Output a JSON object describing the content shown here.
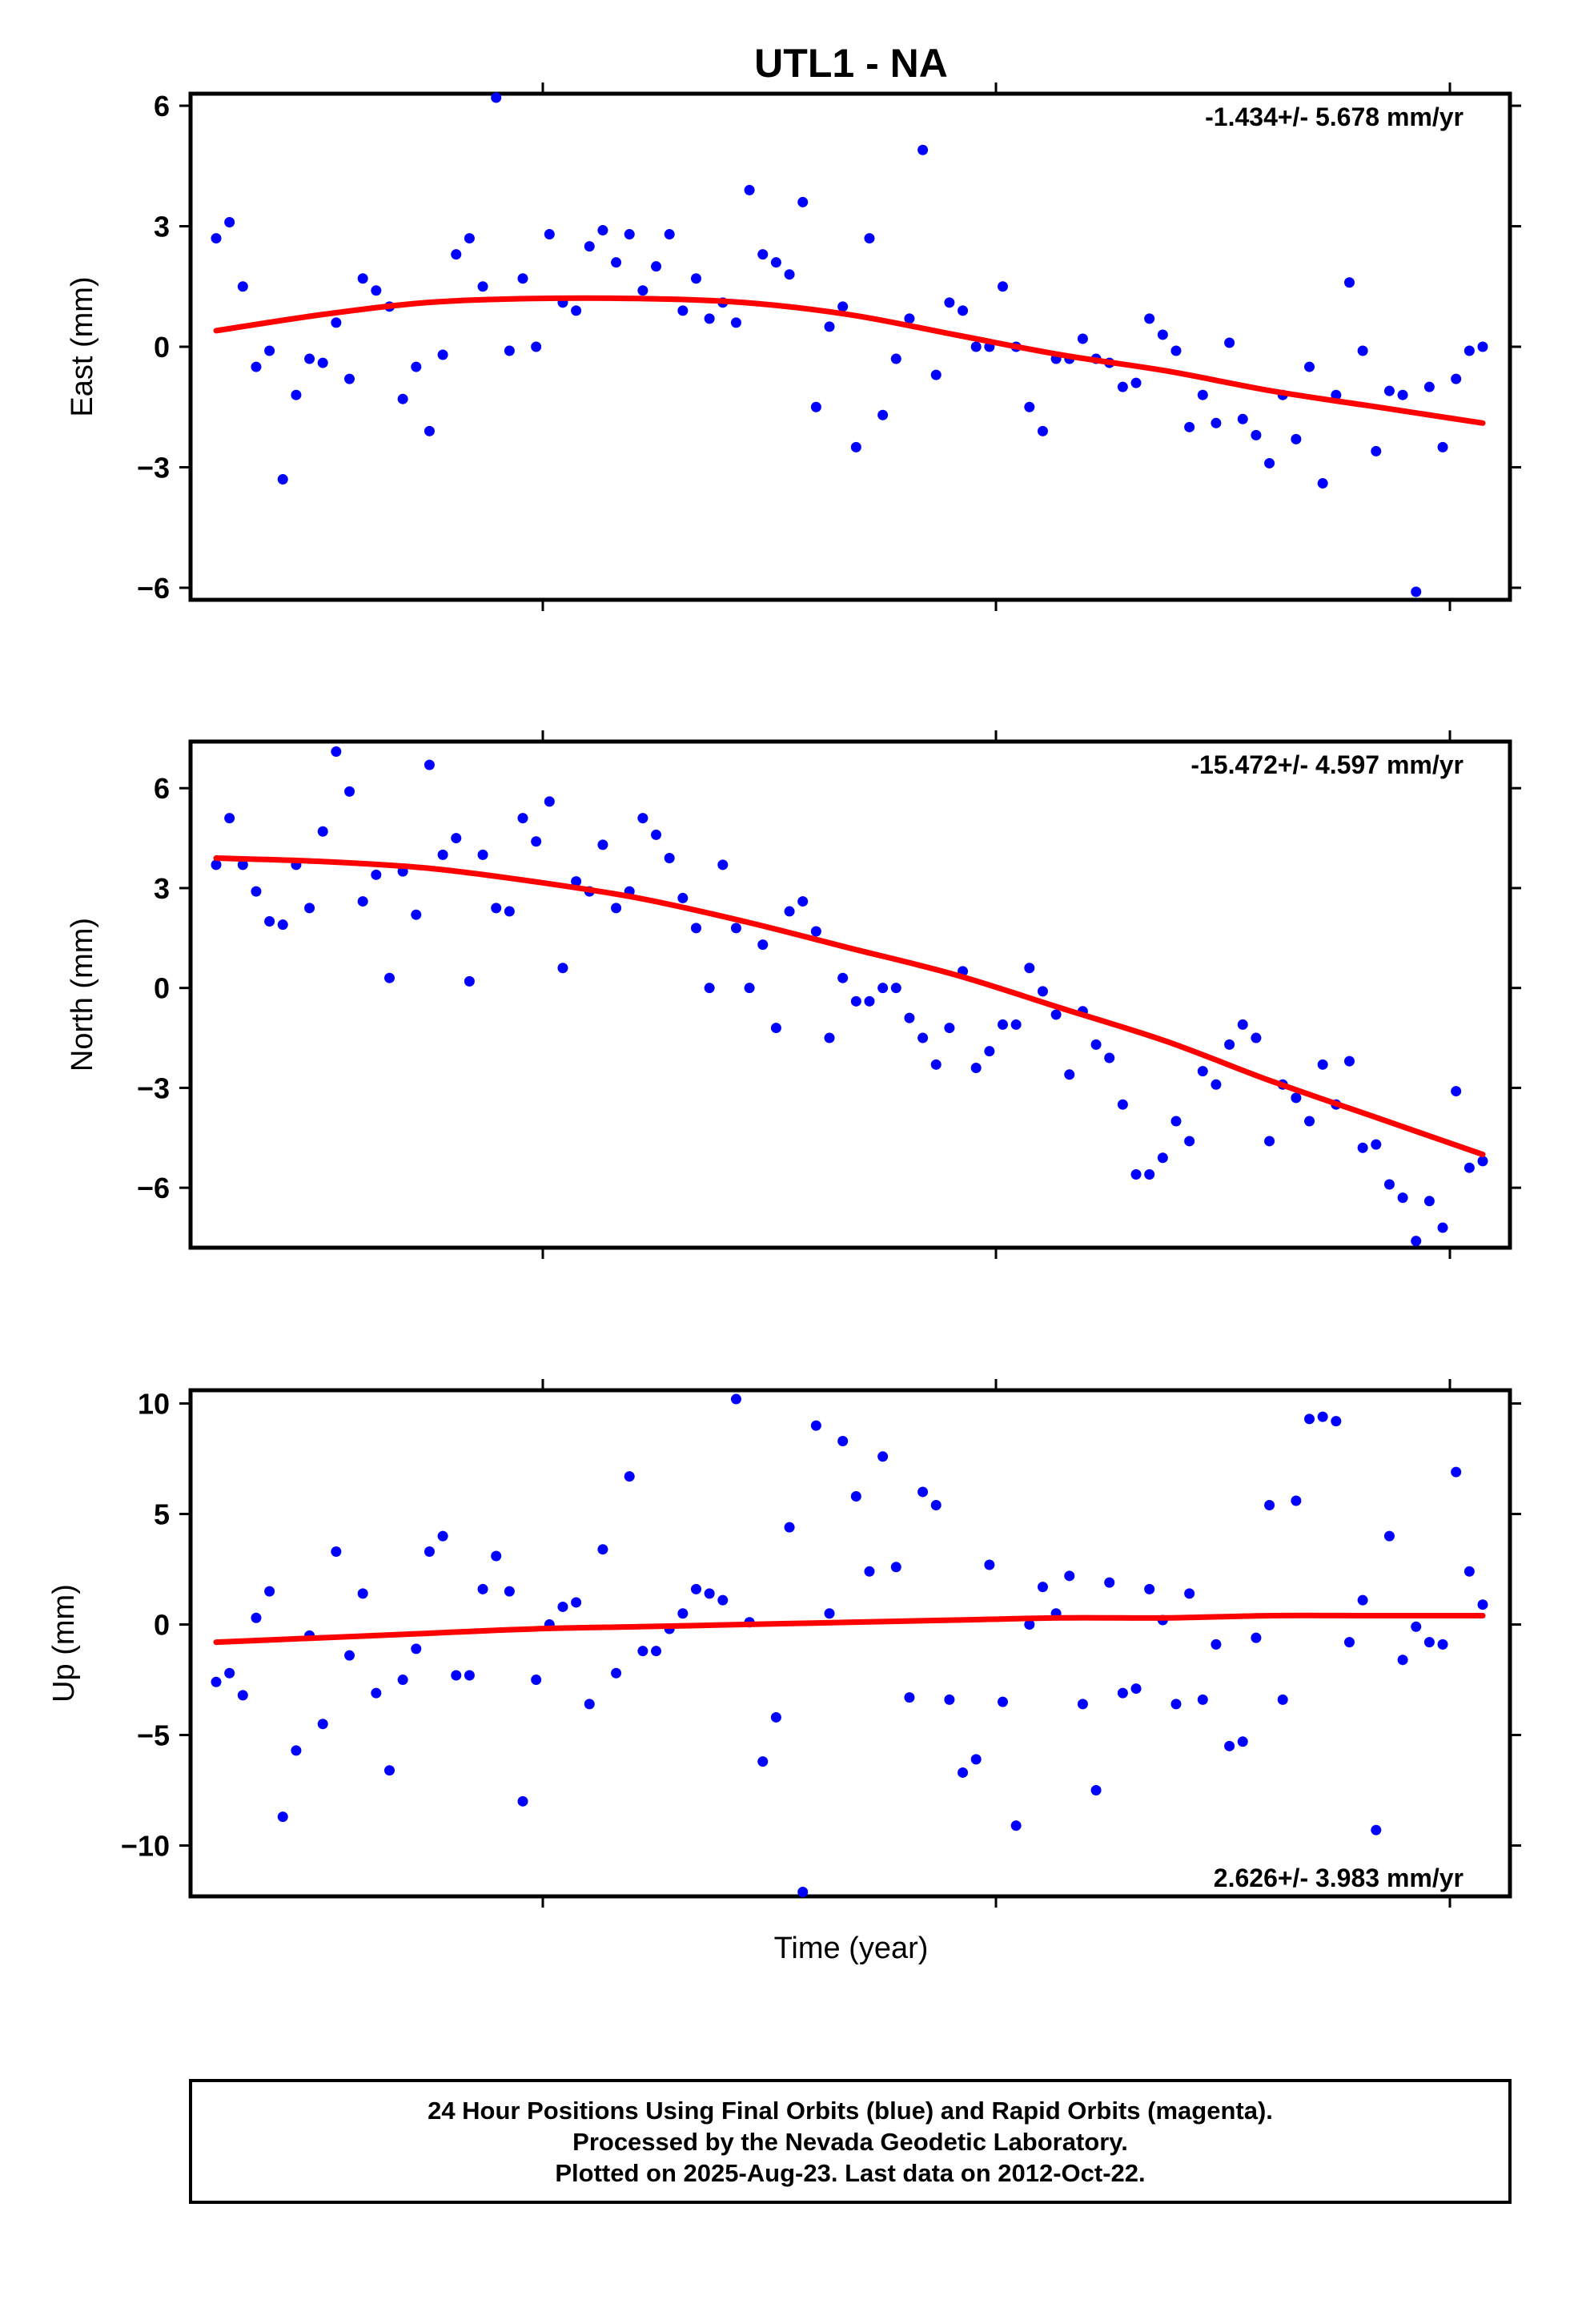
{
  "title": "UTL1 - NA",
  "x_axis_label": "Time (year)",
  "footer": {
    "line1": "24 Hour Positions Using Final Orbits (blue) and Rapid Orbits (magenta).",
    "line2": "Processed by the Nevada Geodetic Laboratory.",
    "line3": "Plotted on 2025-Aug-23. Last data on 2012-Oct-22."
  },
  "colors": {
    "points": "#0000ff",
    "fit": "#ff0000",
    "frame": "#000000"
  },
  "chart_data": [
    {
      "type": "scatter",
      "id": "east",
      "ylabel": "East (mm)",
      "rate_label": "-1.434+/- 5.678 mm/yr",
      "rate_position": "top-right",
      "ylim": [
        -6.3,
        6.3
      ],
      "yticks": [
        6,
        3,
        0,
        -3,
        -6
      ],
      "ytick_labels": [
        "6",
        "3",
        "0",
        "−3",
        "−6"
      ],
      "xlim": [
        0,
        1
      ],
      "grid": false,
      "series": [
        {
          "values": [
            2.7,
            3.1,
            1.5,
            -0.5,
            -0.1,
            -3.3,
            -1.2,
            -0.3,
            -0.4,
            0.6,
            -0.8,
            1.7,
            1.4,
            1.0,
            -1.3,
            -0.5,
            -2.1,
            -0.2,
            2.3,
            2.7,
            1.5,
            6.2,
            -0.1,
            1.7,
            0.0,
            2.8,
            1.1,
            0.9,
            2.5,
            2.9,
            2.1,
            2.8,
            1.4,
            2.0,
            2.8,
            0.9,
            1.7,
            0.7,
            1.1,
            0.6,
            3.9,
            2.3,
            2.1,
            1.8,
            3.6,
            -1.5,
            0.5,
            1.0,
            -2.5,
            2.7,
            -1.7,
            -0.3,
            0.7,
            4.9,
            -0.7,
            1.1,
            0.9,
            0.0,
            0.0,
            1.5,
            0.0,
            -1.5,
            -2.1,
            -0.3,
            -0.3,
            0.2,
            -0.3,
            -0.4,
            -1.0,
            -0.9,
            0.7,
            0.3,
            -0.1,
            -2.0,
            -1.2,
            -1.9,
            0.1,
            -1.8,
            -2.2,
            -2.9,
            -1.2,
            -2.3,
            -0.5,
            -3.4,
            -1.2,
            1.6,
            -0.1,
            -2.6,
            -1.1,
            -1.2,
            -6.1,
            -1.0,
            -2.5,
            -0.8,
            -0.1,
            0.0
          ]
        }
      ],
      "fit": [
        0.4,
        0.8,
        1.1,
        1.2,
        1.2,
        1.1,
        0.8,
        0.3,
        -0.2,
        -0.6,
        -1.1,
        -1.5,
        -1.9
      ]
    },
    {
      "type": "scatter",
      "id": "north",
      "ylabel": "North (mm)",
      "rate_label": "-15.472+/- 4.597 mm/yr",
      "rate_position": "top-right",
      "ylim": [
        -7.8,
        7.4
      ],
      "yticks": [
        6,
        3,
        0,
        -3,
        -6
      ],
      "ytick_labels": [
        "6",
        "3",
        "0",
        "−3",
        "−6"
      ],
      "xlim": [
        0,
        1
      ],
      "grid": false,
      "series": [
        {
          "values": [
            3.7,
            5.1,
            3.7,
            2.9,
            2.0,
            1.9,
            3.7,
            2.4,
            4.7,
            7.1,
            5.9,
            2.6,
            3.4,
            0.3,
            3.5,
            2.2,
            6.7,
            4.0,
            4.5,
            0.2,
            4.0,
            2.4,
            2.3,
            5.1,
            4.4,
            5.6,
            0.6,
            3.2,
            2.9,
            4.3,
            2.4,
            2.9,
            5.1,
            4.6,
            3.9,
            2.7,
            1.8,
            0.0,
            3.7,
            1.8,
            0.0,
            1.3,
            -1.2,
            2.3,
            2.6,
            1.7,
            -1.5,
            0.3,
            -0.4,
            -0.4,
            0.0,
            0.0,
            -0.9,
            -1.5,
            -2.3,
            -1.2,
            0.5,
            -2.4,
            -1.9,
            -1.1,
            -1.1,
            0.6,
            -0.1,
            -0.8,
            -2.6,
            -0.7,
            -1.7,
            -2.1,
            -3.5,
            -5.6,
            -5.6,
            -5.1,
            -4.0,
            -4.6,
            -2.5,
            -2.9,
            -1.7,
            -1.1,
            -1.5,
            -4.6,
            -2.9,
            -3.3,
            -4.0,
            -2.3,
            -3.5,
            -2.2,
            -4.8,
            -4.7,
            -5.9,
            -6.3,
            -7.6,
            -6.4,
            -7.2,
            -3.1,
            -5.4,
            -5.2
          ]
        }
      ],
      "fit": [
        3.9,
        3.8,
        3.6,
        3.2,
        2.7,
        2.0,
        1.2,
        0.4,
        -0.6,
        -1.6,
        -2.8,
        -3.9,
        -5.0
      ]
    },
    {
      "type": "scatter",
      "id": "up",
      "ylabel": "Up (mm)",
      "rate_label": "2.626+/- 3.983 mm/yr",
      "rate_position": "bottom-right",
      "ylim": [
        -12.3,
        10.6
      ],
      "yticks": [
        10,
        5,
        0,
        -5,
        -10
      ],
      "ytick_labels": [
        "10",
        "5",
        "0",
        "−5",
        "−10"
      ],
      "xlim": [
        0,
        1
      ],
      "grid": false,
      "series": [
        {
          "values": [
            -2.6,
            -2.2,
            -3.2,
            0.3,
            1.5,
            -8.7,
            -5.7,
            -0.5,
            -4.5,
            3.3,
            -1.4,
            1.4,
            -3.1,
            -6.6,
            -2.5,
            -1.1,
            3.3,
            4.0,
            -2.3,
            -2.3,
            1.6,
            3.1,
            1.5,
            -8.0,
            -2.5,
            0.0,
            0.8,
            1.0,
            -3.6,
            3.4,
            -2.2,
            6.7,
            -1.2,
            -1.2,
            -0.2,
            0.5,
            1.6,
            1.4,
            1.1,
            10.2,
            0.1,
            -6.2,
            -4.2,
            4.4,
            -12.1,
            9.0,
            0.5,
            8.3,
            5.8,
            2.4,
            7.6,
            2.6,
            -3.3,
            6.0,
            5.4,
            -3.4,
            -6.7,
            -6.1,
            2.7,
            -3.5,
            -9.1,
            0.0,
            1.7,
            0.5,
            2.2,
            -3.6,
            -7.5,
            1.9,
            -3.1,
            -2.9,
            1.6,
            0.2,
            -3.6,
            1.4,
            -3.4,
            -0.9,
            -5.5,
            -5.3,
            -0.6,
            5.4,
            -3.4,
            5.6,
            9.3,
            9.4,
            9.2,
            -0.8,
            1.1,
            -9.3,
            4.0,
            -1.6,
            -0.1,
            -0.8,
            -0.9,
            6.9,
            2.4,
            0.9
          ]
        }
      ],
      "fit": [
        -0.8,
        -0.6,
        -0.4,
        -0.2,
        -0.1,
        0.0,
        0.1,
        0.2,
        0.3,
        0.3,
        0.4,
        0.4,
        0.4
      ]
    }
  ]
}
